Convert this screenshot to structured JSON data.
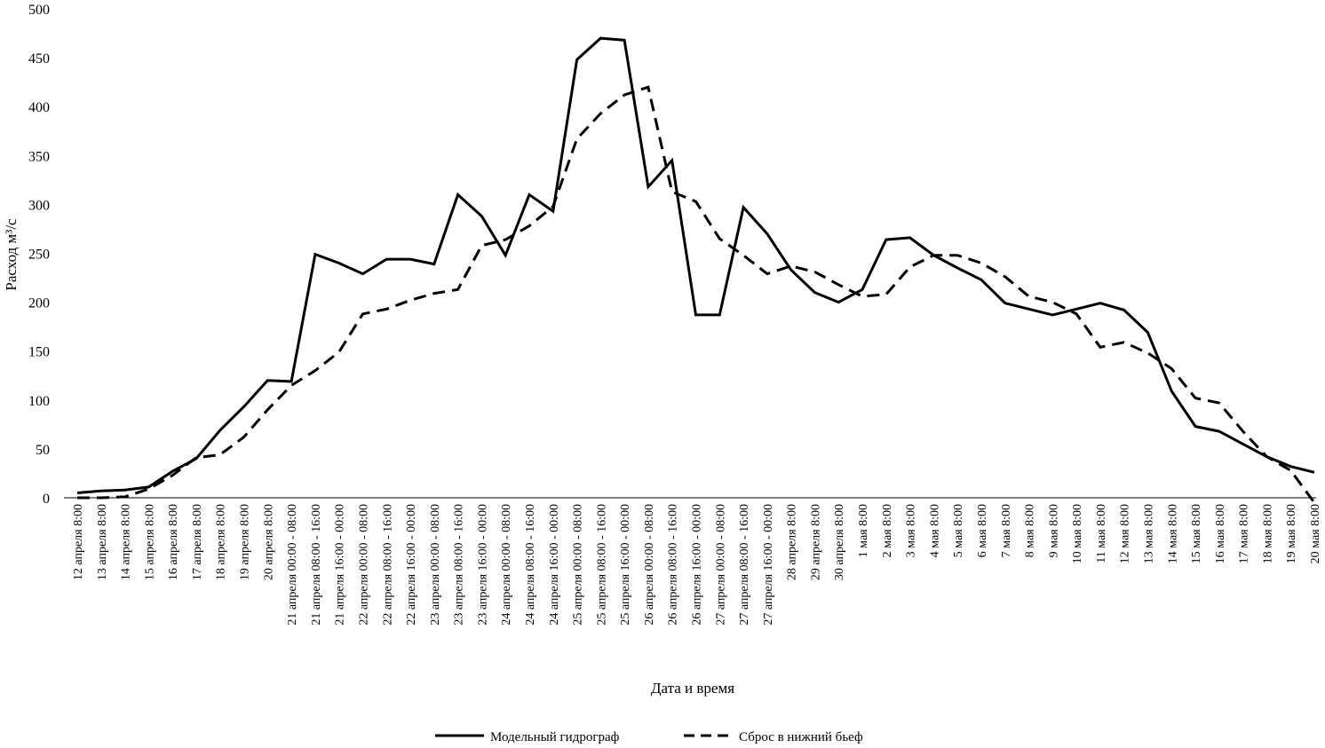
{
  "chart_data": {
    "type": "line",
    "xlabel": "Дата и время",
    "ylabel": "Расход м³/с",
    "ylim": [
      0,
      500
    ],
    "yticks": [
      "0",
      "50",
      "100",
      "150",
      "200",
      "250",
      "300",
      "350",
      "400",
      "450",
      "500"
    ],
    "grid": false,
    "legend_position": "bottom",
    "categories": [
      "12 апреля 8:00",
      "13 апреля 8:00",
      "14 апреля 8:00",
      "15 апреля 8:00",
      "16 апреля 8:00",
      "17 апреля 8:00",
      "18 апреля 8:00",
      "19 апреля 8:00",
      "20 апреля 8:00",
      "21 апреля 00:00 - 08:00",
      "21 апреля 08:00 - 16:00",
      "21 апреля 16:00 - 00:00",
      "22 апреля 00:00 - 08:00",
      "22 апреля 08:00 - 16:00",
      "22 апреля 16:00 - 00:00",
      "23 апреля 00:00 - 08:00",
      "23 апреля 08:00 - 16:00",
      "23 апреля 16:00 - 00:00",
      "24 апреля 00:00 - 08:00",
      "24 апреля 08:00 - 16:00",
      "24 апреля 16:00 - 00:00",
      "25 апреля 00:00 - 08:00",
      "25 апреля 08:00 - 16:00",
      "25 апреля 16:00 - 00:00",
      "26 апреля 00:00 - 08:00",
      "26 апреля 08:00 - 16:00",
      "26 апреля 16:00 - 00:00",
      "27 апреля 00:00 - 08:00",
      "27 апреля 08:00 - 16:00",
      "27 апреля 16:00 - 00:00",
      "28 апреля 8:00",
      "29 апреля 8:00",
      "30 апреля 8:00",
      "1 мая 8:00",
      "2 мая 8:00",
      "3 мая 8:00",
      "4 мая 8:00",
      "5 мая 8:00",
      "6 мая 8:00",
      "7 мая 8:00",
      "8 мая 8:00",
      "9 мая 8:00",
      "10 мая 8:00",
      "11 мая 8:00",
      "12 мая 8:00",
      "13 мая 8:00",
      "14 мая 8:00",
      "15 мая 8:00",
      "16 мая 8:00",
      "17 мая 8:00",
      "18 мая 8:00",
      "19 мая 8:00",
      "20 мая 8:00"
    ],
    "series": [
      {
        "name": "Модельный гидрограф",
        "style": "solid",
        "color": "#000000",
        "values": [
          5,
          7,
          8,
          11,
          27,
          40,
          69,
          93,
          120,
          119,
          249,
          240,
          229,
          244,
          244,
          239,
          310,
          288,
          248,
          310,
          293,
          448,
          470,
          468,
          318,
          345,
          187,
          187,
          297,
          270,
          233,
          210,
          200,
          213,
          264,
          266,
          248,
          235,
          223,
          199,
          193,
          187,
          193,
          199,
          192,
          169,
          109,
          73,
          68,
          55,
          42,
          32,
          26
        ]
      },
      {
        "name": "Сброс в нижний бьеф",
        "style": "dashed",
        "color": "#000000",
        "values": [
          0,
          0,
          1,
          9,
          23,
          41,
          44,
          62,
          90,
          115,
          130,
          149,
          188,
          193,
          202,
          209,
          213,
          258,
          264,
          278,
          298,
          367,
          393,
          412,
          420,
          313,
          303,
          265,
          248,
          229,
          237,
          231,
          218,
          206,
          208,
          236,
          248,
          248,
          240,
          226,
          206,
          200,
          188,
          154,
          159,
          148,
          132,
          102,
          97,
          68,
          42,
          28,
          -5
        ]
      }
    ]
  }
}
